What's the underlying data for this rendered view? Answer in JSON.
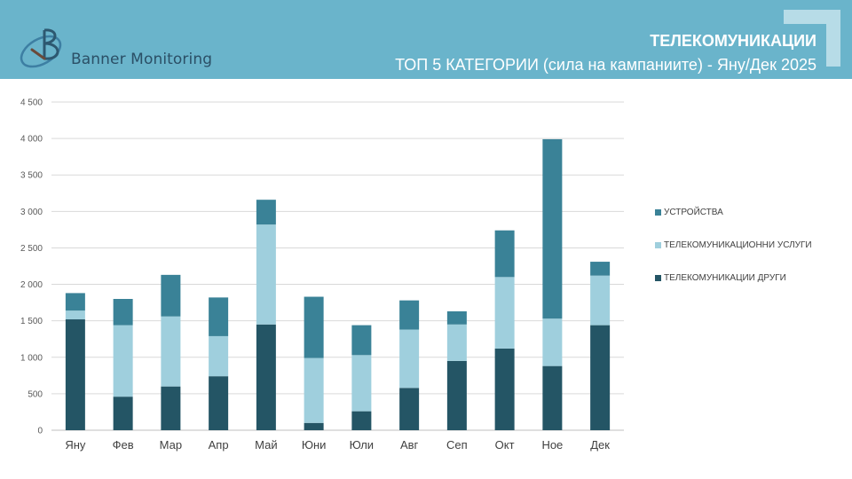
{
  "header": {
    "brand": "Banner Monitoring",
    "title": "ТЕЛЕКОМУНИКАЦИИ",
    "subtitle": "ТОП 5 КАТЕГОРИИ (сила на кампаниите) - Яну/Дек 2025",
    "color": "#6ab4cb"
  },
  "chart_data": {
    "type": "bar",
    "stacked": true,
    "categories": [
      "Яну",
      "Фев",
      "Мар",
      "Апр",
      "Май",
      "Юни",
      "Юли",
      "Авг",
      "Сеп",
      "Окт",
      "Ное",
      "Дек"
    ],
    "series": [
      {
        "name": "ТЕЛЕКОМУНИКАЦИИ ДРУГИ",
        "color": "#245565",
        "values": [
          1520,
          460,
          600,
          740,
          1450,
          100,
          260,
          580,
          950,
          1120,
          880,
          1440
        ]
      },
      {
        "name": "ТЕЛЕКОМУНИКАЦИОННИ УСЛУГИ",
        "color": "#9fcfdd",
        "values": [
          120,
          980,
          960,
          550,
          1370,
          890,
          770,
          800,
          500,
          980,
          650,
          680
        ]
      },
      {
        "name": "УСТРОЙСТВА",
        "color": "#3a8297",
        "values": [
          240,
          360,
          570,
          530,
          340,
          840,
          410,
          400,
          180,
          640,
          2460,
          190
        ]
      }
    ],
    "yticks": [
      "0",
      "500",
      "1 000",
      "1 500",
      "2 000",
      "2 500",
      "3 000",
      "3 500",
      "4 000",
      "4 500"
    ],
    "ylim": [
      0,
      4500
    ],
    "grid": true,
    "legend_position": "right"
  }
}
